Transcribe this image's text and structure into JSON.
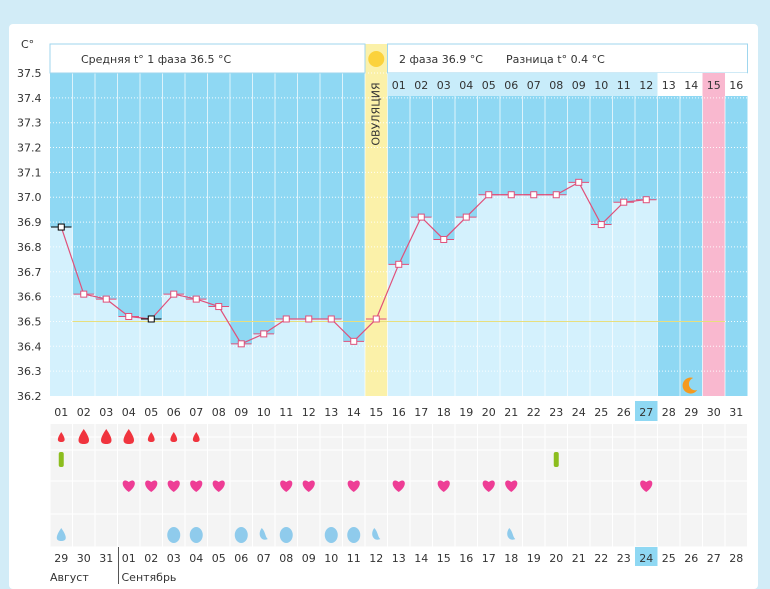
{
  "chart_data": {
    "type": "line",
    "y_unit": "C°",
    "ylim": [
      36.2,
      37.5
    ],
    "y_ticks": [
      "37.5",
      "37.4",
      "37.3",
      "37.2",
      "37.1",
      "37.0",
      "36.9",
      "36.8",
      "36.7",
      "36.6",
      "36.5",
      "36.4",
      "36.3",
      "36.2"
    ],
    "days": [
      "01",
      "02",
      "03",
      "04",
      "05",
      "06",
      "07",
      "08",
      "09",
      "10",
      "11",
      "12",
      "13",
      "14",
      "15",
      "16",
      "17",
      "18",
      "19",
      "20",
      "21",
      "22",
      "23",
      "24",
      "25",
      "26",
      "27",
      "28",
      "29",
      "30",
      "31"
    ],
    "today_index": 26,
    "temperatures": [
      36.88,
      36.61,
      36.59,
      36.52,
      36.51,
      36.61,
      36.59,
      36.56,
      36.41,
      36.45,
      36.51,
      36.51,
      36.51,
      36.42,
      36.51,
      36.73,
      36.92,
      36.83,
      36.92,
      37.01,
      37.01,
      37.01,
      37.01,
      37.06,
      36.89,
      36.98,
      36.99
    ],
    "cover_line": 36.5,
    "ovulation_index": 14,
    "ovulation_label": "ОВУЛЯЦИЯ",
    "period_start_index": 29,
    "moon_index": 28,
    "phase1": {
      "label": "Средняя t° 1 фаза",
      "value": "36.5 °С"
    },
    "phase2": {
      "label": "2 фаза",
      "value": "36.9 °С"
    },
    "difference": {
      "label": "Разница t°",
      "value": "0.4 °С"
    },
    "phase2_days": [
      "01",
      "02",
      "03",
      "04",
      "05",
      "06",
      "07",
      "08",
      "09",
      "10",
      "11",
      "12",
      "13",
      "14",
      "15",
      "16"
    ],
    "bleeding": [
      {
        "day": 0,
        "size": "s"
      },
      {
        "day": 1,
        "size": "l"
      },
      {
        "day": 2,
        "size": "l"
      },
      {
        "day": 3,
        "size": "l"
      },
      {
        "day": 4,
        "size": "s"
      },
      {
        "day": 5,
        "size": "s"
      },
      {
        "day": 6,
        "size": "s"
      }
    ],
    "tests": [
      0,
      22
    ],
    "intercourse": [
      3,
      4,
      5,
      6,
      7,
      10,
      11,
      13,
      15,
      17,
      19,
      20,
      26
    ],
    "discharge": [
      {
        "day": 0,
        "kind": "drop"
      },
      {
        "day": 5,
        "kind": "full"
      },
      {
        "day": 6,
        "kind": "full"
      },
      {
        "day": 8,
        "kind": "full"
      },
      {
        "day": 9,
        "kind": "curl"
      },
      {
        "day": 10,
        "kind": "full"
      },
      {
        "day": 12,
        "kind": "full"
      },
      {
        "day": 13,
        "kind": "full"
      },
      {
        "day": 14,
        "kind": "curl"
      },
      {
        "day": 20,
        "kind": "curl"
      }
    ],
    "calendar_dates": [
      "29",
      "30",
      "31",
      "01",
      "02",
      "03",
      "04",
      "05",
      "06",
      "07",
      "08",
      "09",
      "10",
      "11",
      "12",
      "13",
      "14",
      "15",
      "16",
      "17",
      "18",
      "19",
      "20",
      "21",
      "22",
      "23",
      "24",
      "25",
      "26",
      "27",
      "28"
    ],
    "calendar_red": [
      5,
      6,
      12,
      13,
      19,
      20,
      27
    ],
    "calendar_today_index": 26,
    "month_labels": [
      {
        "day": 0,
        "label": "Август"
      },
      {
        "day": 3,
        "label": "Сентябрь"
      }
    ]
  },
  "colors": {
    "sky": "#8fd8f3",
    "bar": "#d4f1fd",
    "line": "#e0507a",
    "ovulation": "#fbf1a9",
    "period": "#f9b8cf",
    "heart": "#ee3d95",
    "drop_red": "#f0343e",
    "drop_blue": "#8fcbec",
    "test": "#8cbd1e"
  }
}
